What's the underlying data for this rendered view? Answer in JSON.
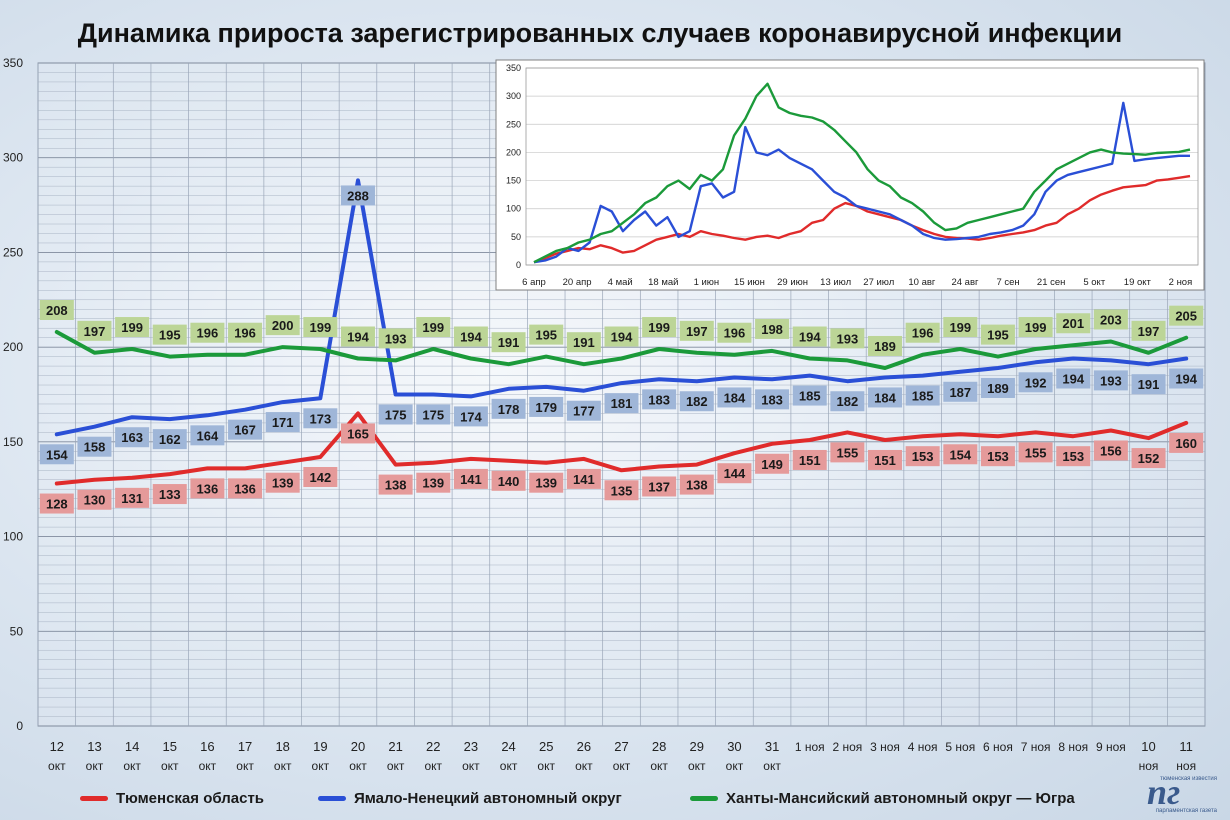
{
  "title": "Динамика прироста зарегистрированных случаев коронавирусной инфекции",
  "logo": {
    "mark": "пг",
    "top_text": "тюменская известия",
    "bottom_text": "парламентская газета"
  },
  "chart_data": [
    {
      "type": "line",
      "title": "Динамика прироста зарегистрированных случаев коронавирусной инфекции",
      "ylim": [
        0,
        350
      ],
      "yticks": [
        "0",
        "50",
        "100",
        "150",
        "200",
        "250",
        "300",
        "350"
      ],
      "grid": true,
      "legend_position": "bottom",
      "categories": [
        [
          "12",
          "окт"
        ],
        [
          "13",
          "окт"
        ],
        [
          "14",
          "окт"
        ],
        [
          "15",
          "окт"
        ],
        [
          "16",
          "окт"
        ],
        [
          "17",
          "окт"
        ],
        [
          "18",
          "окт"
        ],
        [
          "19",
          "окт"
        ],
        [
          "20",
          "окт"
        ],
        [
          "21",
          "окт"
        ],
        [
          "22",
          "окт"
        ],
        [
          "23",
          "окт"
        ],
        [
          "24",
          "окт"
        ],
        [
          "25",
          "окт"
        ],
        [
          "26",
          "окт"
        ],
        [
          "27",
          "окт"
        ],
        [
          "28",
          "окт"
        ],
        [
          "29",
          "окт"
        ],
        [
          "30",
          "окт"
        ],
        [
          "31",
          "окт"
        ],
        [
          "1 ноя"
        ],
        [
          "2 ноя"
        ],
        [
          "3 ноя"
        ],
        [
          "4 ноя"
        ],
        [
          "5 ноя"
        ],
        [
          "6 ноя"
        ],
        [
          "7 ноя"
        ],
        [
          "8 ноя"
        ],
        [
          "9 ноя"
        ],
        [
          "10",
          "ноя"
        ],
        [
          "11",
          "ноя"
        ]
      ],
      "series": [
        {
          "name": "Тюменская область",
          "color": "#e02b2b",
          "label_bg": "#e59a9a",
          "values": [
            128,
            130,
            131,
            133,
            136,
            136,
            139,
            142,
            165,
            138,
            139,
            141,
            140,
            139,
            141,
            135,
            137,
            138,
            144,
            149,
            151,
            155,
            151,
            153,
            154,
            153,
            155,
            153,
            156,
            152,
            160
          ]
        },
        {
          "name": "Ямало-Ненецкий автономный округ",
          "color": "#2a4fd6",
          "label_bg": "#9fb6d8",
          "values": [
            154,
            158,
            163,
            162,
            164,
            167,
            171,
            173,
            288,
            175,
            175,
            174,
            178,
            179,
            177,
            181,
            183,
            182,
            184,
            183,
            185,
            182,
            184,
            185,
            187,
            189,
            192,
            194,
            193,
            191,
            194
          ]
        },
        {
          "name": "Ханты-Мансийский автономный округ — Югра",
          "color": "#1b9a3a",
          "label_bg": "#bcd597",
          "values": [
            208,
            197,
            199,
            195,
            196,
            196,
            200,
            199,
            194,
            193,
            199,
            194,
            191,
            195,
            191,
            194,
            199,
            197,
            196,
            198,
            194,
            193,
            189,
            196,
            199,
            195,
            199,
            201,
            203,
            197,
            205
          ]
        }
      ]
    },
    {
      "type": "line",
      "ylim": [
        0,
        350
      ],
      "yticks": [
        "0",
        "50",
        "100",
        "150",
        "200",
        "250",
        "300",
        "350"
      ],
      "xticks": [
        "6 апр",
        "20 апр",
        "4 май",
        "18 май",
        "1 июн",
        "15 июн",
        "29 июн",
        "13 июл",
        "27 июл",
        "10 авг",
        "24 авг",
        "7 сен",
        "21 сен",
        "5 окт",
        "19 окт",
        "2 ноя"
      ],
      "grid": true,
      "series": [
        {
          "name": "Тюменская область",
          "color": "#e02b2b",
          "values": [
            5,
            12,
            20,
            25,
            30,
            28,
            35,
            30,
            22,
            25,
            35,
            45,
            50,
            55,
            50,
            60,
            55,
            52,
            48,
            45,
            50,
            52,
            48,
            55,
            60,
            75,
            80,
            100,
            110,
            105,
            95,
            90,
            85,
            80,
            70,
            62,
            55,
            50,
            48,
            47,
            45,
            48,
            52,
            55,
            58,
            62,
            70,
            75,
            90,
            100,
            115,
            125,
            132,
            138,
            140,
            142,
            150,
            152,
            155,
            158
          ]
        },
        {
          "name": "Ямало-Ненецкий автономный округ",
          "color": "#2a4fd6",
          "values": [
            5,
            8,
            15,
            30,
            25,
            40,
            105,
            95,
            60,
            80,
            95,
            70,
            85,
            50,
            60,
            140,
            145,
            120,
            130,
            245,
            200,
            195,
            205,
            190,
            180,
            170,
            150,
            130,
            120,
            105,
            100,
            95,
            90,
            80,
            70,
            55,
            48,
            45,
            46,
            48,
            50,
            55,
            58,
            62,
            70,
            90,
            130,
            150,
            160,
            165,
            170,
            175,
            180,
            288,
            185,
            188,
            190,
            192,
            194,
            194
          ]
        },
        {
          "name": "Ханты-Мансийский автономный округ — Югра",
          "color": "#1b9a3a",
          "values": [
            5,
            15,
            25,
            30,
            40,
            45,
            55,
            60,
            75,
            90,
            110,
            120,
            140,
            150,
            135,
            160,
            150,
            170,
            230,
            260,
            300,
            322,
            280,
            270,
            265,
            262,
            255,
            240,
            220,
            200,
            170,
            150,
            140,
            120,
            110,
            95,
            75,
            62,
            65,
            75,
            80,
            85,
            90,
            95,
            100,
            130,
            150,
            170,
            180,
            190,
            200,
            205,
            200,
            198,
            197,
            196,
            199,
            200,
            201,
            205
          ]
        }
      ]
    }
  ]
}
